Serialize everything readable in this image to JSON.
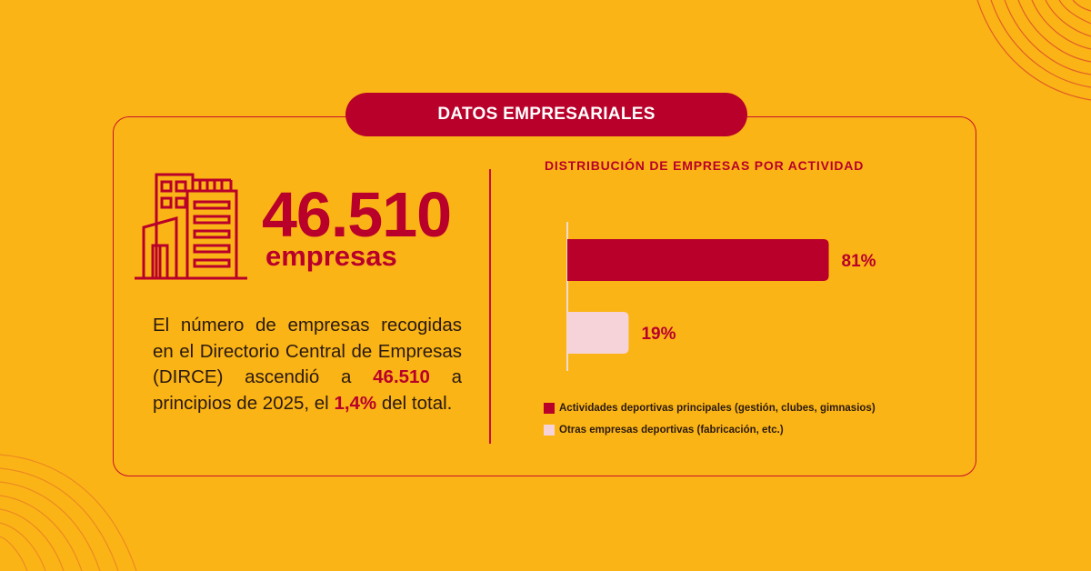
{
  "colors": {
    "background": "#FBB415",
    "accent": "#B8002A",
    "light_bar": "#F6D3D8",
    "line": "#C8102E",
    "text_dark": "#2A1A10"
  },
  "header": {
    "title": "DATOS EMPRESARIALES"
  },
  "stat": {
    "icon": "office-building-icon",
    "value": "46.510",
    "unit": "empresas"
  },
  "description": {
    "part1": "El número de empresas recogidas en el Directorio Central de Empresas (DIRCE) ascendió a ",
    "highlight1": "46.510",
    "part2": " a principios de 2025, el ",
    "highlight2": "1,4%",
    "part3": " del total."
  },
  "chart_data": {
    "type": "bar",
    "orientation": "horizontal",
    "title": "DISTRIBUCIÓN DE EMPRESAS POR ACTIVIDAD",
    "xlabel": "",
    "ylabel": "",
    "xlim": [
      0,
      100
    ],
    "grid": false,
    "legend_position": "bottom",
    "categories": [
      "Actividades deportivas principales (gestión, clubes, gimnasios)",
      "Otras empresas deportivas (fabricación, etc.)"
    ],
    "values": [
      81,
      19
    ],
    "data_labels": [
      "81%",
      "19%"
    ],
    "colors": [
      "#B8002A",
      "#F6D3D8"
    ]
  }
}
